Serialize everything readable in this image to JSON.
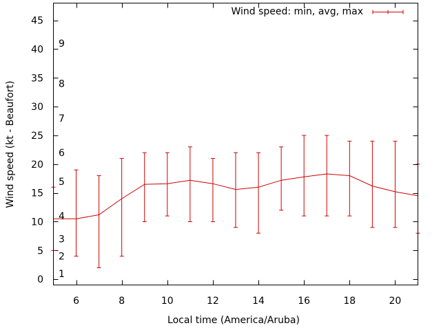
{
  "chart_data": {
    "type": "line",
    "title": "",
    "xlabel": "Local time (America/Aruba)",
    "ylabel": "Wind speed (kt - Beaufort)",
    "xlim": [
      5,
      21
    ],
    "ylim": [
      -1,
      48
    ],
    "x_ticks": [
      6,
      8,
      10,
      12,
      14,
      16,
      18,
      20
    ],
    "y_ticks": [
      0,
      5,
      10,
      15,
      20,
      25,
      30,
      35,
      40,
      45
    ],
    "beaufort_labels": [
      {
        "label": "1",
        "value": 1
      },
      {
        "label": "2",
        "value": 4
      },
      {
        "label": "3",
        "value": 7
      },
      {
        "label": "4",
        "value": 11
      },
      {
        "label": "5",
        "value": 17
      },
      {
        "label": "6",
        "value": 22
      },
      {
        "label": "7",
        "value": 28
      },
      {
        "label": "8",
        "value": 34
      },
      {
        "label": "9",
        "value": 41
      }
    ],
    "legend": {
      "label": "Wind speed: min, avg, max",
      "position": "top-right"
    },
    "color": "#cc0000",
    "series": [
      {
        "name": "Wind speed: min, avg, max",
        "x": [
          5,
          6,
          7,
          8,
          9,
          10,
          11,
          12,
          13,
          14,
          15,
          16,
          17,
          18,
          19,
          20,
          21
        ],
        "avg": [
          10.5,
          10.5,
          11.2,
          14,
          16.5,
          16.6,
          17.2,
          16.6,
          15.6,
          16,
          17.2,
          17.8,
          18.3,
          18,
          16.2,
          15.2,
          14.5
        ],
        "min": [
          5,
          4,
          2,
          4,
          10,
          11,
          10,
          10,
          9,
          8,
          12,
          11,
          11,
          11,
          9,
          9,
          8
        ],
        "max": [
          16,
          19,
          18,
          21,
          22,
          22,
          23,
          21,
          22,
          22,
          23,
          25,
          25,
          24,
          24,
          24,
          20
        ]
      }
    ]
  }
}
